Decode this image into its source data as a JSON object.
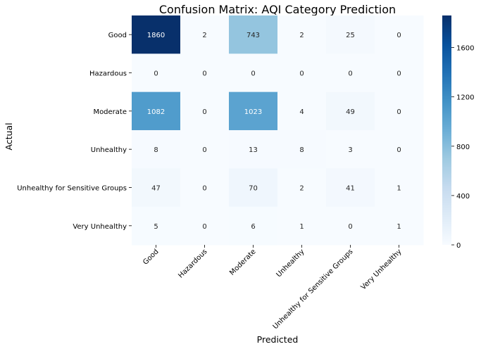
{
  "chart_data": {
    "type": "heatmap",
    "title": "Confusion Matrix: AQI Category Prediction",
    "xlabel": "Predicted",
    "ylabel": "Actual",
    "x_categories": [
      "Good",
      "Hazardous",
      "Moderate",
      "Unhealthy",
      "Unhealthy for Sensitive Groups",
      "Very Unhealthy"
    ],
    "y_categories": [
      "Good",
      "Hazardous",
      "Moderate",
      "Unhealthy",
      "Unhealthy for Sensitive Groups",
      "Very Unhealthy"
    ],
    "values": [
      [
        1860,
        2,
        743,
        2,
        25,
        0
      ],
      [
        0,
        0,
        0,
        0,
        0,
        0
      ],
      [
        1082,
        0,
        1023,
        4,
        49,
        0
      ],
      [
        8,
        0,
        13,
        8,
        3,
        0
      ],
      [
        47,
        0,
        70,
        2,
        41,
        1
      ],
      [
        5,
        0,
        6,
        1,
        0,
        1
      ]
    ],
    "colormap": "Blues",
    "color_range": [
      0,
      1860
    ],
    "colorbar_ticks": [
      0,
      400,
      800,
      1200,
      1600
    ]
  }
}
